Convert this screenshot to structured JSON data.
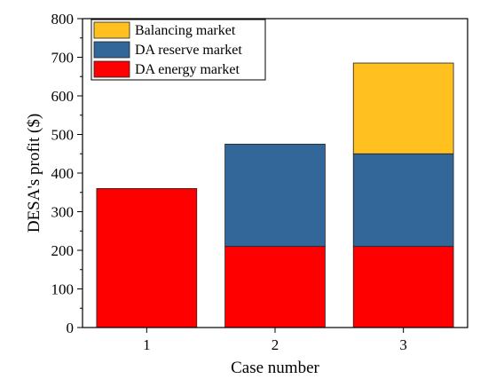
{
  "chart_data": {
    "type": "bar",
    "stacked": true,
    "categories": [
      "1",
      "2",
      "3"
    ],
    "series": [
      {
        "name": "DA energy market",
        "values": [
          360,
          210,
          210
        ],
        "color": "#ff0000"
      },
      {
        "name": "DA reserve market",
        "values": [
          0,
          265,
          240
        ],
        "color": "#336699"
      },
      {
        "name": "Balancing market",
        "values": [
          0,
          0,
          235
        ],
        "color": "#ffc020"
      }
    ],
    "legend_order": [
      "Balancing market",
      "DA reserve market",
      "DA energy market"
    ],
    "xlabel": "Case number",
    "ylabel": "DESA's profit ($)",
    "ylim": [
      0,
      800
    ],
    "yticks": [
      0,
      100,
      200,
      300,
      400,
      500,
      600,
      700,
      800
    ],
    "legend_position": "top-left",
    "grid": false
  }
}
